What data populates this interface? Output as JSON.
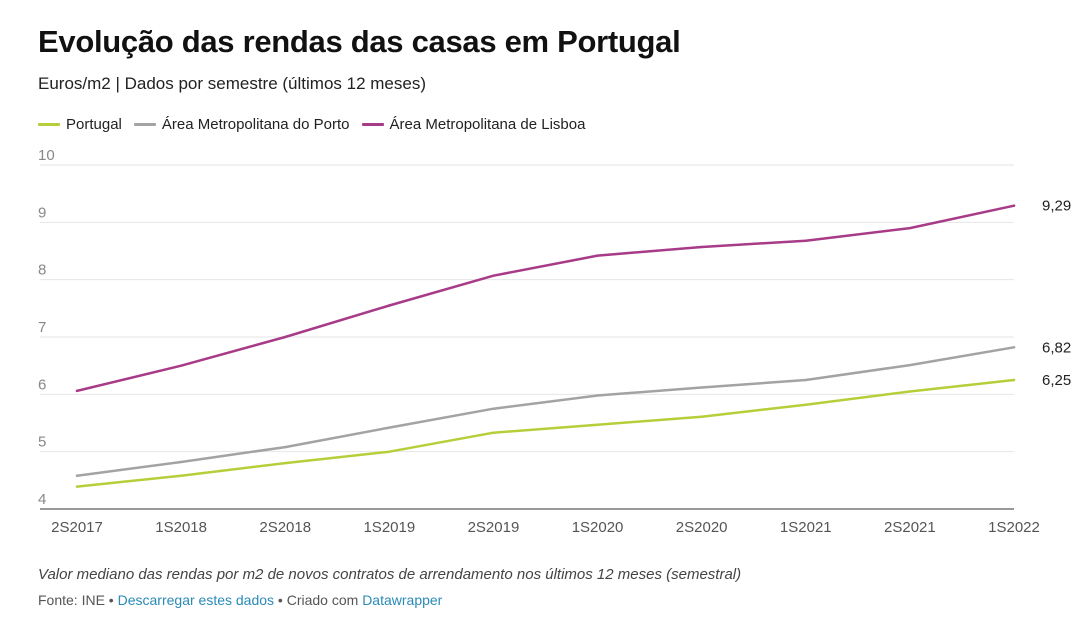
{
  "header": {
    "title": "Evolução das rendas das casas em Portugal",
    "subtitle": "Euros/m2 | Dados por semestre (últimos 12 meses)"
  },
  "footer": {
    "note": "Valor mediano das rendas por m2 de novos contratos de arrendamento nos últimos 12 meses (semestral)",
    "source_prefix": "Fonte: INE • ",
    "download_link": "Descarregar estes dados",
    "created_with": " • Criado com ",
    "datawrapper_link": "Datawrapper"
  },
  "chart_data": {
    "type": "line",
    "title": "Evolução das rendas das casas em Portugal",
    "xlabel": "",
    "ylabel": "Euros/m2",
    "categories": [
      "2S2017",
      "1S2018",
      "2S2018",
      "1S2019",
      "2S2019",
      "1S2020",
      "2S2020",
      "1S2021",
      "2S2021",
      "1S2022"
    ],
    "ylim": [
      4,
      10
    ],
    "yticks": [
      4,
      5,
      6,
      7,
      8,
      9,
      10
    ],
    "grid": true,
    "legend_position": "top-left",
    "series": [
      {
        "name": "Portugal",
        "color": "#b5cf3a",
        "end_label": "6,25",
        "values": [
          4.39,
          4.58,
          4.8,
          5.0,
          5.33,
          5.47,
          5.61,
          5.82,
          6.05,
          6.25
        ]
      },
      {
        "name": "Área Metropolitana do Porto",
        "color": "#a3a3a3",
        "end_label": "6,82",
        "values": [
          4.58,
          4.82,
          5.08,
          5.42,
          5.75,
          5.98,
          6.12,
          6.25,
          6.51,
          6.82
        ]
      },
      {
        "name": "Área Metropolitana de Lisboa",
        "color": "#a83b88",
        "end_label": "9,29",
        "values": [
          6.06,
          6.5,
          7.0,
          7.55,
          8.07,
          8.42,
          8.57,
          8.68,
          8.9,
          9.29
        ]
      }
    ]
  }
}
